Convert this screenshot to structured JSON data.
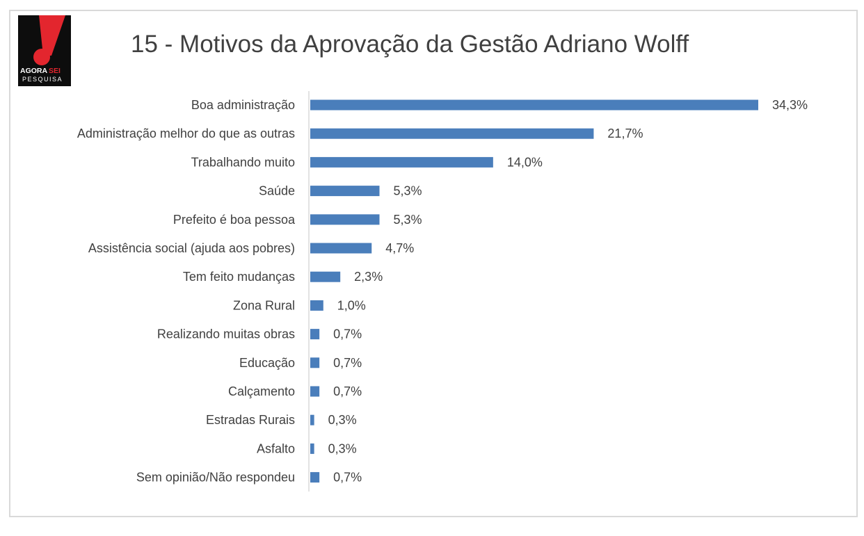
{
  "logo": {
    "line1a": "AGORA",
    "line1b": "SEI",
    "line2": "PESQUISA",
    "colors": {
      "bg": "#0d0d0d",
      "mark": "#e3262e",
      "text": "#ffffff"
    }
  },
  "chart_data": {
    "type": "bar",
    "orientation": "horizontal",
    "title": "15 - Motivos da Aprovação da Gestão Adriano Wolff",
    "categories": [
      "Boa administração",
      "Administração melhor do que as outras",
      "Trabalhando muito",
      "Saúde",
      "Prefeito é boa pessoa",
      "Assistência social (ajuda aos pobres)",
      "Tem feito mudanças",
      "Zona Rural",
      "Realizando muitas obras",
      "Educação",
      "Calçamento",
      "Estradas Rurais",
      "Asfalto",
      "Sem opinião/Não respondeu"
    ],
    "values": [
      34.3,
      21.7,
      14.0,
      5.3,
      5.3,
      4.7,
      2.3,
      1.0,
      0.7,
      0.7,
      0.7,
      0.3,
      0.3,
      0.7
    ],
    "value_labels": [
      "34,3%",
      "21,7%",
      "14,0%",
      "5,3%",
      "5,3%",
      "4,7%",
      "2,3%",
      "1,0%",
      "0,7%",
      "0,7%",
      "0,7%",
      "0,3%",
      "0,3%",
      "0,7%"
    ],
    "xlim": [
      0,
      34.3
    ],
    "grid": false,
    "bar_color": "#4a7ebb"
  }
}
